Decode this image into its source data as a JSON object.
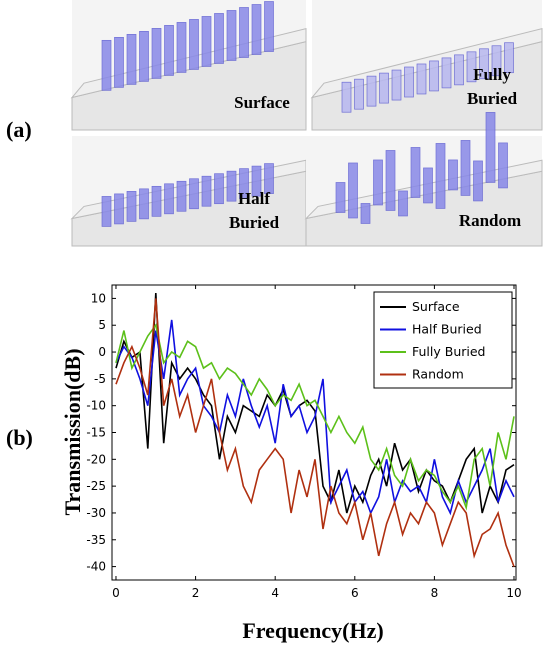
{
  "panel_labels": [
    "(a)",
    "(b)"
  ],
  "renders": [
    {
      "lines": [
        "Surface"
      ]
    },
    {
      "lines": [
        "Fully",
        "Buried"
      ]
    },
    {
      "lines": [
        "Half",
        "Buried"
      ]
    },
    {
      "lines": [
        "Random"
      ]
    }
  ],
  "chart_data": {
    "type": "line",
    "xlabel": "Frequency(Hz)",
    "ylabel": "Transmission(dB)",
    "x": [
      0,
      0.2,
      0.4,
      0.6,
      0.8,
      1,
      1.2,
      1.4,
      1.6,
      1.8,
      2,
      2.2,
      2.4,
      2.6,
      2.8,
      3,
      3.2,
      3.4,
      3.6,
      3.8,
      4,
      4.2,
      4.4,
      4.6,
      4.8,
      5,
      5.2,
      5.4,
      5.6,
      5.8,
      6,
      6.2,
      6.4,
      6.6,
      6.8,
      7,
      7.2,
      7.4,
      7.6,
      7.8,
      8,
      8.2,
      8.4,
      8.6,
      8.8,
      9,
      9.2,
      9.4,
      9.6,
      9.8,
      10
    ],
    "series": [
      {
        "name": "Surface",
        "color": "#000000",
        "values": [
          -3,
          2,
          -1,
          0,
          -18,
          11,
          -17,
          -2,
          -5,
          -3,
          -5,
          -8,
          -10,
          -20,
          -12,
          -15,
          -10,
          -11,
          -12,
          -8,
          -10,
          -7,
          -12,
          -10,
          -9,
          -11,
          -25,
          -28,
          -22,
          -30,
          -25,
          -28,
          -23,
          -20,
          -25,
          -17,
          -22,
          -20,
          -26,
          -22,
          -24,
          -25,
          -28,
          -24,
          -20,
          -18,
          -30,
          -25,
          -28,
          -22,
          -21
        ]
      },
      {
        "name": "Half Buried",
        "color": "#1010e0",
        "values": [
          -2,
          1,
          -1,
          -5,
          -10,
          4,
          -5,
          6,
          -8,
          -5,
          -3,
          -10,
          -12,
          -15,
          -8,
          -12,
          -5,
          -10,
          -14,
          -10,
          -17,
          -6,
          -12,
          -10,
          -15,
          -12,
          -5,
          -28,
          -25,
          -22,
          -28,
          -26,
          -30,
          -27,
          -20,
          -28,
          -24,
          -26,
          -25,
          -28,
          -20,
          -27,
          -30,
          -24,
          -28,
          -25,
          -22,
          -18,
          -28,
          -24,
          -27
        ]
      },
      {
        "name": "Fully Buried",
        "color": "#5cc01a",
        "values": [
          -2,
          4,
          -3,
          0,
          3,
          5,
          -2,
          0,
          -1,
          2,
          1,
          -3,
          -2,
          -5,
          -3,
          -4,
          -6,
          -8,
          -5,
          -7,
          -10,
          -8,
          -9,
          -6,
          -10,
          -9,
          -12,
          -15,
          -12,
          -15,
          -17,
          -14,
          -20,
          -22,
          -18,
          -23,
          -25,
          -20,
          -24,
          -22,
          -23,
          -26,
          -28,
          -25,
          -29,
          -20,
          -18,
          -25,
          -15,
          -20,
          -12
        ]
      },
      {
        "name": "Random",
        "color": "#b03010",
        "values": [
          -6,
          -2,
          1,
          -3,
          -8,
          10,
          -10,
          -5,
          -12,
          -8,
          -15,
          -10,
          -5,
          -15,
          -22,
          -18,
          -25,
          -28,
          -22,
          -20,
          -18,
          -20,
          -30,
          -22,
          -27,
          -20,
          -33,
          -25,
          -30,
          -32,
          -28,
          -35,
          -30,
          -38,
          -32,
          -28,
          -34,
          -30,
          -32,
          -28,
          -30,
          -36,
          -32,
          -28,
          -30,
          -38,
          -34,
          -33,
          -30,
          -36,
          -40
        ]
      }
    ],
    "xlim": [
      -0.1,
      10.05
    ],
    "ylim": [
      -42.5,
      12.5
    ],
    "xticks": [
      0,
      2,
      4,
      6,
      8,
      10
    ],
    "yticks": [
      10,
      5,
      0,
      -5,
      -10,
      -15,
      -20,
      -25,
      -30,
      -35,
      -40
    ],
    "legend": "upper right"
  }
}
